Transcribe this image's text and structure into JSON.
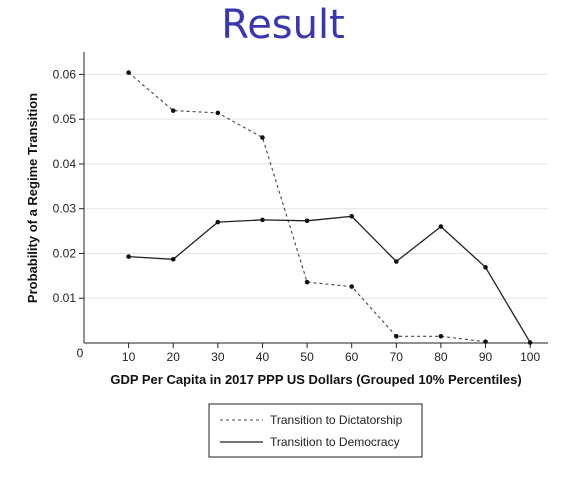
{
  "slide": {
    "title": "Result"
  },
  "chart_data": {
    "type": "line",
    "xlabel": "GDP Per Capita in 2017 PPP US Dollars (Grouped 10% Percentiles)",
    "ylabel": "Probability of a Regime Transition",
    "x_ticks": [
      10,
      20,
      30,
      40,
      50,
      60,
      70,
      80,
      90,
      100
    ],
    "y_ticks": [
      0.01,
      0.02,
      0.03,
      0.04,
      0.05,
      0.06
    ],
    "origin_label": "0",
    "xlim": [
      0,
      104
    ],
    "ylim": [
      0,
      0.065
    ],
    "grid": "horizontal",
    "legend_position": "bottom",
    "series": [
      {
        "name": "Transition to Dictatorship",
        "style": "dashed",
        "x": [
          10,
          20,
          30,
          40,
          50,
          60,
          70,
          80,
          90
        ],
        "y": [
          0.0604,
          0.0519,
          0.0514,
          0.0459,
          0.0136,
          0.0126,
          0.0015,
          0.0015,
          0.0003
        ]
      },
      {
        "name": "Transition to Democracy",
        "style": "solid",
        "x": [
          10,
          20,
          30,
          40,
          50,
          60,
          70,
          80,
          90,
          100
        ],
        "y": [
          0.0193,
          0.0187,
          0.027,
          0.0275,
          0.0273,
          0.0283,
          0.0182,
          0.026,
          0.0169,
          0.0001
        ]
      }
    ]
  }
}
